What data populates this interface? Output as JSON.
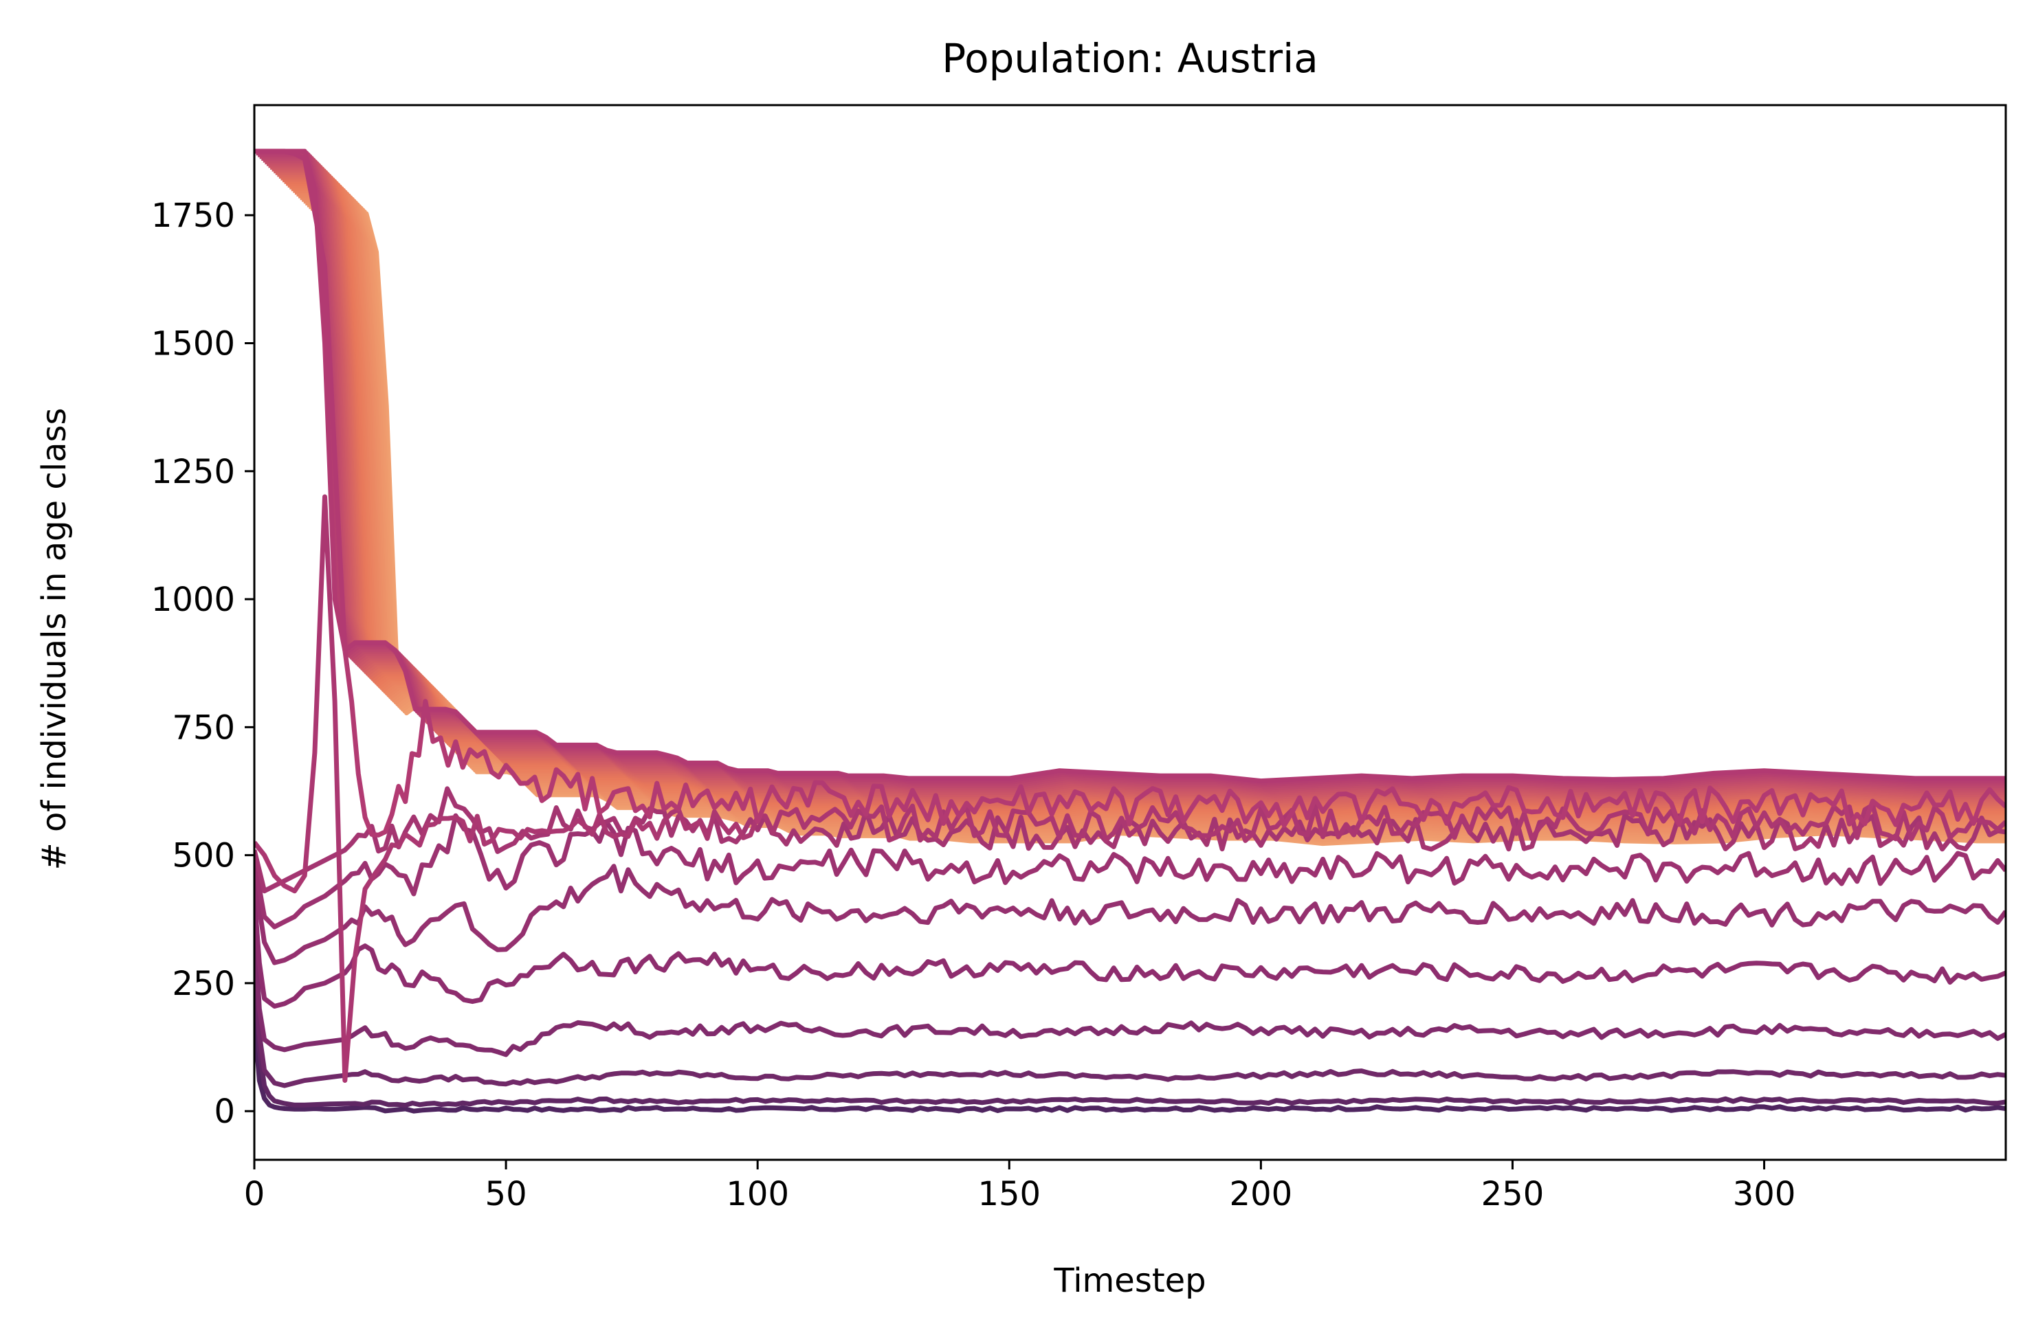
{
  "chart_data": {
    "type": "line",
    "title": "Population: Austria",
    "xlabel": "Timestep",
    "ylabel": "# of individuals in age class",
    "xlim": [
      0,
      348
    ],
    "ylim": [
      -95,
      1965
    ],
    "xticks": [
      0,
      50,
      100,
      150,
      200,
      250,
      300
    ],
    "yticks": [
      0,
      250,
      500,
      750,
      1000,
      1250,
      1500,
      1750
    ],
    "grid": false,
    "legend": "none",
    "colors": {
      "young": "#4f2560",
      "mid": "#8b2c6e",
      "upper": "#b23a72",
      "old": "#e8785a",
      "oldest": "#f0a070"
    },
    "bands": [
      {
        "kind": "high",
        "x": [
          0,
          2,
          4,
          6,
          8,
          10,
          12,
          14,
          16,
          18,
          20,
          22,
          24,
          26,
          28,
          30,
          32,
          34,
          36,
          38,
          40,
          42,
          44,
          46,
          48,
          50,
          52,
          54,
          56,
          58,
          60,
          62,
          64,
          66,
          68,
          70,
          72,
          74,
          76,
          78,
          80,
          82,
          84,
          86,
          88,
          90,
          92,
          94,
          96,
          98,
          100,
          102,
          104,
          106,
          108,
          110,
          112,
          114,
          116,
          118,
          120,
          125,
          130,
          140,
          150,
          160,
          170,
          180,
          190,
          200,
          210,
          220,
          230,
          240,
          250,
          260,
          270,
          280,
          290,
          300,
          310,
          320,
          330,
          340,
          348
        ],
        "values": [
          1875,
          1875,
          1875,
          1875,
          1875,
          1875,
          1800,
          1500,
          1000,
          900,
          915,
          915,
          915,
          915,
          900,
          860,
          785,
          785,
          785,
          785,
          780,
          760,
          740,
          740,
          740,
          740,
          740,
          740,
          740,
          730,
          715,
          715,
          715,
          715,
          715,
          705,
          700,
          700,
          700,
          700,
          700,
          695,
          690,
          680,
          680,
          680,
          680,
          670,
          665,
          665,
          665,
          665,
          660,
          660,
          660,
          660,
          660,
          660,
          660,
          655,
          655,
          655,
          650,
          650,
          650,
          665,
          660,
          655,
          655,
          645,
          650,
          655,
          650,
          655,
          655,
          650,
          648,
          650,
          660,
          665,
          660,
          655,
          650,
          650,
          650
        ]
      }
    ],
    "series": [
      {
        "kind": "age-class",
        "x": [
          0,
          1,
          2,
          3,
          4,
          5,
          6,
          8,
          10,
          12,
          14,
          16,
          18,
          20,
          22,
          24,
          26,
          28,
          30,
          35,
          40,
          50,
          60,
          70,
          80,
          90,
          100,
          120,
          140,
          160,
          180,
          200,
          220,
          240,
          260,
          280,
          300,
          320,
          340,
          348
        ],
        "values": [
          180,
          60,
          25,
          12,
          8,
          6,
          5,
          4,
          4,
          5,
          4,
          4,
          5,
          6,
          5,
          4,
          3,
          3,
          2,
          3,
          4,
          5,
          3,
          4,
          5,
          4,
          4,
          5,
          3,
          4,
          5,
          4,
          6,
          4,
          5,
          4,
          6,
          5,
          5,
          5
        ]
      },
      {
        "kind": "age-class",
        "x": [
          0,
          1,
          2,
          3,
          4,
          6,
          8,
          10,
          15,
          20,
          25,
          30,
          40,
          50,
          60,
          70,
          80,
          90,
          100,
          120,
          140,
          160,
          180,
          200,
          220,
          240,
          260,
          280,
          300,
          320,
          340,
          348
        ],
        "values": [
          300,
          120,
          50,
          30,
          20,
          15,
          12,
          12,
          14,
          15,
          16,
          14,
          15,
          18,
          20,
          22,
          18,
          20,
          22,
          20,
          18,
          22,
          20,
          18,
          20,
          22,
          18,
          20,
          22,
          20,
          18,
          18
        ]
      },
      {
        "kind": "age-class",
        "x": [
          0,
          1,
          2,
          4,
          6,
          8,
          10,
          14,
          18,
          22,
          26,
          30,
          40,
          50,
          60,
          70,
          80,
          90,
          100,
          120,
          140,
          160,
          180,
          200,
          220,
          240,
          260,
          280,
          300,
          320,
          340,
          348
        ],
        "values": [
          340,
          150,
          80,
          55,
          50,
          55,
          60,
          65,
          70,
          75,
          65,
          60,
          65,
          55,
          60,
          70,
          75,
          70,
          65,
          70,
          75,
          70,
          65,
          70,
          75,
          70,
          65,
          70,
          75,
          70,
          70,
          70
        ]
      },
      {
        "kind": "age-class",
        "x": [
          0,
          1,
          2,
          4,
          6,
          8,
          10,
          14,
          18,
          22,
          26,
          30,
          35,
          40,
          50,
          60,
          70,
          80,
          90,
          100,
          120,
          140,
          160,
          180,
          200,
          220,
          240,
          260,
          280,
          300,
          320,
          340,
          348
        ],
        "values": [
          380,
          200,
          140,
          125,
          120,
          125,
          130,
          135,
          140,
          160,
          145,
          120,
          145,
          130,
          115,
          160,
          170,
          150,
          160,
          165,
          155,
          160,
          150,
          165,
          160,
          150,
          160,
          150,
          155,
          160,
          150,
          155,
          150
        ]
      },
      {
        "kind": "age-class",
        "x": [
          0,
          1,
          2,
          4,
          6,
          8,
          10,
          14,
          18,
          22,
          26,
          30,
          35,
          40,
          45,
          50,
          60,
          70,
          80,
          90,
          100,
          120,
          140,
          160,
          180,
          200,
          220,
          240,
          260,
          280,
          300,
          320,
          340,
          348
        ],
        "values": [
          420,
          290,
          220,
          205,
          210,
          220,
          240,
          250,
          270,
          320,
          280,
          250,
          260,
          220,
          230,
          250,
          300,
          280,
          290,
          300,
          270,
          275,
          280,
          275,
          270,
          270,
          275,
          270,
          265,
          270,
          275,
          270,
          265,
          270
        ]
      },
      {
        "kind": "age-class",
        "x": [
          0,
          2,
          4,
          6,
          8,
          10,
          14,
          18,
          22,
          26,
          30,
          35,
          40,
          45,
          50,
          55,
          60,
          70,
          80,
          90,
          100,
          110,
          120,
          140,
          160,
          180,
          200,
          220,
          240,
          260,
          280,
          300,
          320,
          340,
          348
        ],
        "values": [
          460,
          330,
          290,
          295,
          305,
          320,
          335,
          360,
          400,
          370,
          340,
          370,
          410,
          330,
          320,
          380,
          400,
          460,
          440,
          400,
          390,
          395,
          385,
          395,
          390,
          385,
          390,
          385,
          390,
          385,
          390,
          385,
          390,
          385,
          390
        ]
      },
      {
        "kind": "age-class",
        "x": [
          0,
          2,
          4,
          6,
          8,
          10,
          14,
          18,
          22,
          26,
          30,
          35,
          40,
          45,
          50,
          55,
          60,
          70,
          80,
          90,
          100,
          110,
          120,
          140,
          160,
          180,
          200,
          220,
          240,
          260,
          280,
          300,
          320,
          340,
          348
        ],
        "values": [
          490,
          380,
          360,
          370,
          380,
          400,
          420,
          450,
          490,
          460,
          440,
          470,
          560,
          500,
          440,
          500,
          500,
          540,
          500,
          480,
          470,
          480,
          490,
          470,
          480,
          470,
          470,
          480,
          470,
          480,
          470,
          480,
          470,
          480,
          470
        ]
      },
      {
        "kind": "age-class",
        "x": [
          0,
          2,
          4,
          6,
          8,
          10,
          14,
          18,
          22,
          26,
          30,
          35,
          40,
          45,
          50,
          55,
          60,
          70,
          80,
          90,
          100,
          110,
          120,
          140,
          160,
          180,
          200,
          220,
          240,
          260,
          280,
          300,
          320,
          340,
          348
        ],
        "values": [
          510,
          430,
          440,
          450,
          460,
          470,
          490,
          510,
          550,
          530,
          540,
          560,
          620,
          560,
          520,
          560,
          580,
          580,
          560,
          550,
          550,
          540,
          560,
          545,
          540,
          545,
          540,
          545,
          540,
          545,
          545,
          540,
          545,
          540,
          545
        ]
      },
      {
        "kind": "age-class",
        "x": [
          0,
          2,
          4,
          6,
          8,
          10,
          12,
          14,
          16,
          18,
          20,
          22,
          24,
          26,
          30,
          40,
          50,
          60,
          70,
          80,
          90,
          100,
          120,
          140,
          160,
          180,
          200,
          220,
          240,
          260,
          280,
          300,
          320,
          340,
          348
        ],
        "values": [
          525,
          500,
          460,
          440,
          430,
          460,
          700,
          1200,
          800,
          60,
          300,
          420,
          480,
          500,
          520,
          560,
          550,
          570,
          565,
          560,
          555,
          565,
          560,
          565,
          560,
          565,
          560,
          565,
          560,
          565,
          565,
          560,
          565,
          560,
          565
        ]
      },
      {
        "kind": "age-class",
        "x": [
          0,
          2,
          4,
          6,
          8,
          10,
          14,
          18,
          22,
          26,
          30,
          34,
          40,
          50,
          60,
          70,
          80,
          90,
          100,
          110,
          120,
          140,
          160,
          180,
          200,
          220,
          240,
          260,
          280,
          300,
          320,
          340,
          348
        ],
        "values": [
          1875,
          1875,
          1875,
          1875,
          1870,
          1860,
          1650,
          900,
          600,
          520,
          640,
          760,
          700,
          650,
          630,
          610,
          610,
          600,
          600,
          620,
          600,
          595,
          600,
          595,
          590,
          600,
          595,
          600,
          595,
          600,
          595,
          595,
          595
        ]
      }
    ]
  }
}
